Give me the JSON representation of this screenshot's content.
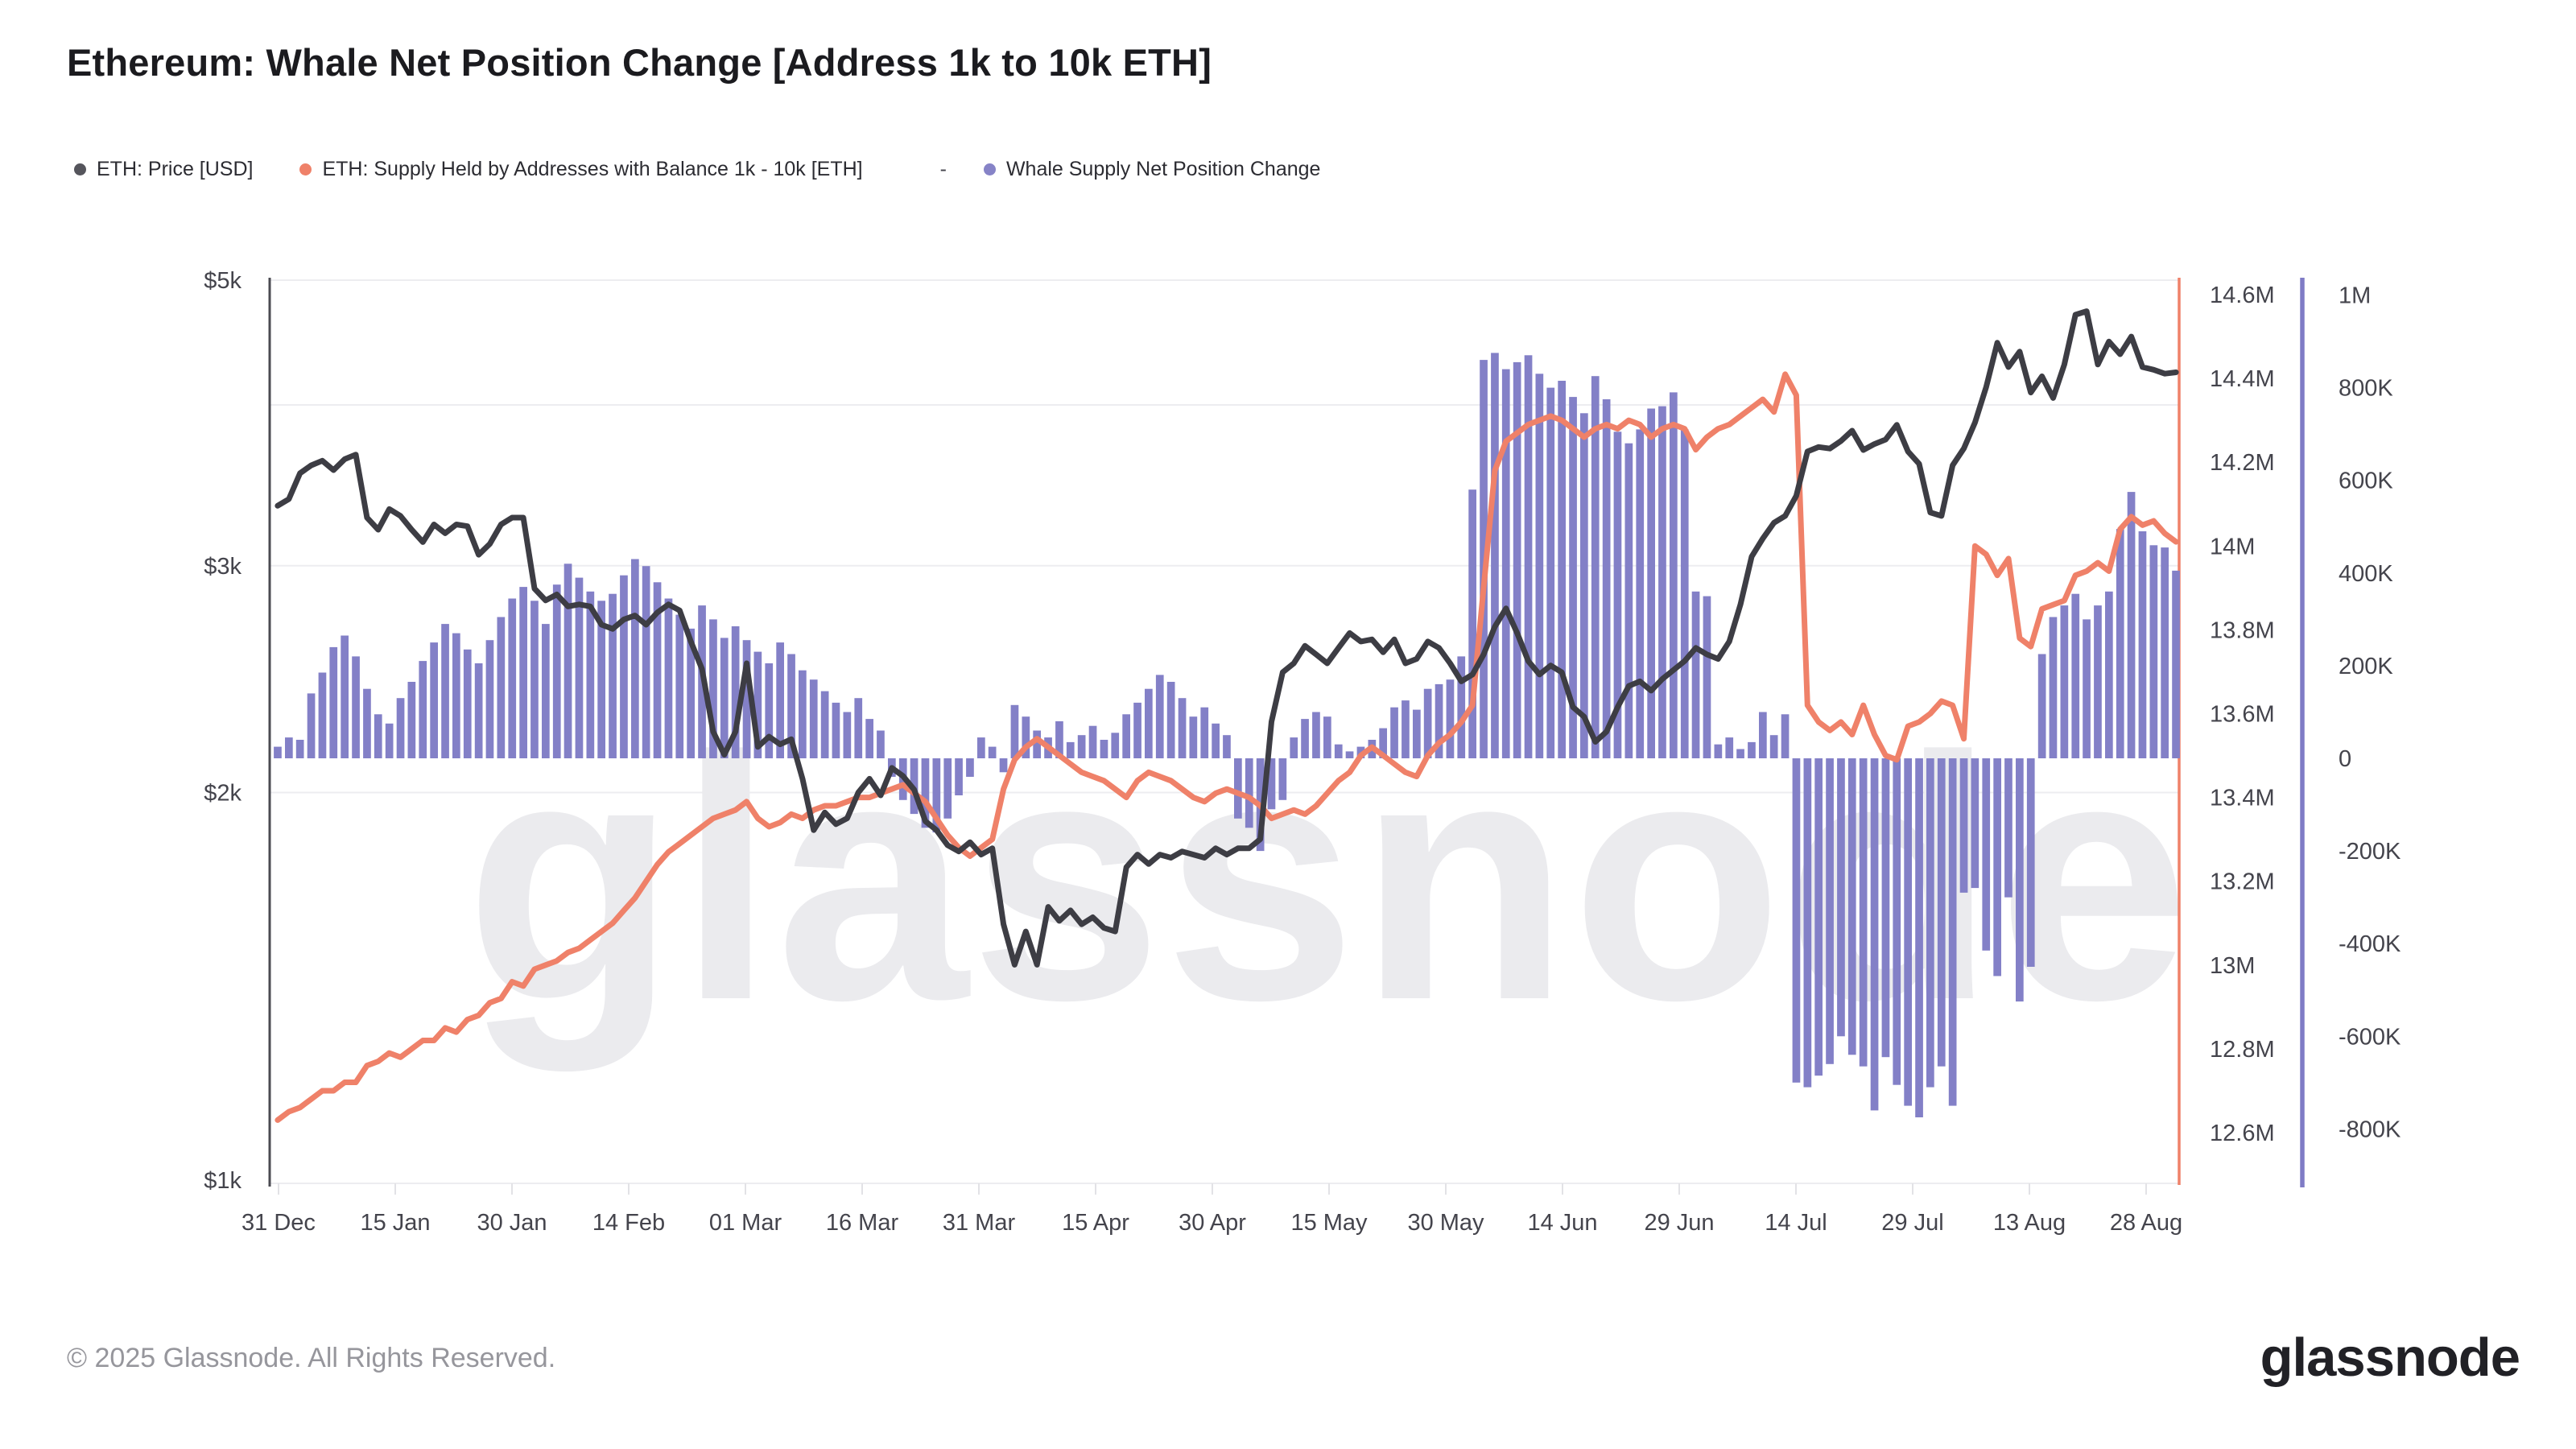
{
  "title": "Ethereum: Whale Net Position Change [Address 1k to 10k ETH]",
  "watermark": "glassnode",
  "legend": {
    "separator": "-",
    "items": [
      {
        "label": "ETH: Price [USD]",
        "color": "#55555c"
      },
      {
        "label": "ETH: Supply Held by Addresses with Balance 1k - 10k [ETH]",
        "color": "#EF8169"
      },
      {
        "label": "Whale Supply Net Position Change",
        "color": "#8683C7"
      }
    ]
  },
  "footer": {
    "copyright": "© 2025 Glassnode. All Rights Reserved.",
    "brand": "glassnode"
  },
  "colors": {
    "background": "#ffffff",
    "grid": "#ededf0",
    "axis_text": "#44444c",
    "left_axis_line": "#4b4b52",
    "price_line": "#3D3D44",
    "supply_line": "#EF8169",
    "bars": "#8380C7",
    "net_axis_line": "#7F7BC5",
    "watermark": "#ebebee"
  },
  "chart_data": {
    "type": "mixed",
    "x_tick_labels": [
      "31 Dec",
      "15 Jan",
      "30 Jan",
      "14 Feb",
      "01 Mar",
      "16 Mar",
      "31 Mar",
      "15 Apr",
      "30 Apr",
      "15 May",
      "30 May",
      "14 Jun",
      "29 Jun",
      "14 Jul",
      "29 Jul",
      "13 Aug",
      "28 Aug"
    ],
    "x_start": "31 Dec",
    "x_end": "01 Sep",
    "axes": {
      "price": {
        "side": "left",
        "scale": "log",
        "min": 1000,
        "max": 5000,
        "unit": "USD",
        "ticks": [
          {
            "label": "$5k",
            "v": 5000
          },
          {
            "label": "$3k",
            "v": 3000
          },
          {
            "label": "$2k",
            "v": 2000
          },
          {
            "label": "$1k",
            "v": 1000
          }
        ],
        "gridlines": [
          5000,
          4000,
          3000,
          2000
        ]
      },
      "supply": {
        "side": "right",
        "scale": "linear",
        "min": 12.6,
        "max": 14.6,
        "unit": "M ETH",
        "ticks": [
          {
            "label": "14.6M",
            "v": 14.6
          },
          {
            "label": "14.4M",
            "v": 14.4
          },
          {
            "label": "14.2M",
            "v": 14.2
          },
          {
            "label": "14M",
            "v": 14.0
          },
          {
            "label": "13.8M",
            "v": 13.8
          },
          {
            "label": "13.6M",
            "v": 13.6
          },
          {
            "label": "13.4M",
            "v": 13.4
          },
          {
            "label": "13.2M",
            "v": 13.2
          },
          {
            "label": "13M",
            "v": 13.0
          },
          {
            "label": "12.8M",
            "v": 12.8
          },
          {
            "label": "12.6M",
            "v": 12.6
          }
        ]
      },
      "net": {
        "side": "right-outer",
        "scale": "linear",
        "min": -800,
        "max": 1000,
        "unit": "K ETH",
        "ticks": [
          {
            "label": "1M",
            "v": 1000
          },
          {
            "label": "800K",
            "v": 800
          },
          {
            "label": "600K",
            "v": 600
          },
          {
            "label": "400K",
            "v": 400
          },
          {
            "label": "200K",
            "v": 200
          },
          {
            "label": "0",
            "v": 0
          },
          {
            "label": "-200K",
            "v": -200
          },
          {
            "label": "-400K",
            "v": -400
          },
          {
            "label": "-600K",
            "v": -600
          },
          {
            "label": "-800K",
            "v": -800
          }
        ]
      }
    },
    "series": [
      {
        "name": "ETH: Price [USD]",
        "type": "line",
        "axis": "price",
        "color": "#3D3D44",
        "values": [
          3340,
          3380,
          3540,
          3590,
          3620,
          3560,
          3630,
          3660,
          3270,
          3200,
          3320,
          3280,
          3200,
          3130,
          3230,
          3180,
          3230,
          3220,
          3060,
          3120,
          3230,
          3270,
          3270,
          2880,
          2820,
          2850,
          2790,
          2800,
          2790,
          2700,
          2680,
          2725,
          2745,
          2700,
          2760,
          2800,
          2770,
          2620,
          2495,
          2230,
          2140,
          2230,
          2520,
          2170,
          2210,
          2180,
          2200,
          2050,
          1870,
          1930,
          1890,
          1910,
          2000,
          2050,
          1990,
          2090,
          2060,
          2010,
          1900,
          1870,
          1820,
          1800,
          1830,
          1790,
          1810,
          1580,
          1470,
          1560,
          1470,
          1630,
          1590,
          1620,
          1580,
          1600,
          1570,
          1560,
          1750,
          1790,
          1760,
          1790,
          1780,
          1800,
          1790,
          1780,
          1810,
          1790,
          1810,
          1810,
          1840,
          2270,
          2480,
          2520,
          2600,
          2560,
          2520,
          2590,
          2660,
          2620,
          2630,
          2570,
          2630,
          2520,
          2540,
          2620,
          2590,
          2520,
          2440,
          2470,
          2560,
          2690,
          2780,
          2660,
          2530,
          2470,
          2510,
          2480,
          2330,
          2290,
          2190,
          2230,
          2330,
          2420,
          2440,
          2400,
          2450,
          2490,
          2530,
          2590,
          2560,
          2540,
          2620,
          2800,
          3050,
          3150,
          3240,
          3280,
          3400,
          3680,
          3710,
          3700,
          3750,
          3820,
          3690,
          3730,
          3760,
          3860,
          3680,
          3600,
          3300,
          3280,
          3590,
          3700,
          3876,
          4130,
          4470,
          4280,
          4400,
          4090,
          4210,
          4050,
          4300,
          4700,
          4730,
          4300,
          4480,
          4380,
          4520,
          4280,
          4260,
          4230,
          4240
        ]
      },
      {
        "name": "ETH: Supply Held by Addresses with Balance 1k - 10k [ETH]",
        "type": "line",
        "axis": "supply",
        "color": "#EF8169",
        "values": [
          12.63,
          12.65,
          12.66,
          12.68,
          12.7,
          12.7,
          12.72,
          12.72,
          12.76,
          12.77,
          12.79,
          12.78,
          12.8,
          12.82,
          12.82,
          12.85,
          12.84,
          12.87,
          12.88,
          12.91,
          12.92,
          12.96,
          12.95,
          12.99,
          13.0,
          13.01,
          13.03,
          13.04,
          13.06,
          13.08,
          13.1,
          13.13,
          13.16,
          13.2,
          13.24,
          13.27,
          13.29,
          13.31,
          13.33,
          13.35,
          13.36,
          13.37,
          13.39,
          13.35,
          13.33,
          13.34,
          13.36,
          13.35,
          13.37,
          13.38,
          13.38,
          13.39,
          13.4,
          13.4,
          13.41,
          13.42,
          13.43,
          13.41,
          13.39,
          13.35,
          13.31,
          13.28,
          13.26,
          13.28,
          13.3,
          13.42,
          13.49,
          13.52,
          13.54,
          13.52,
          13.5,
          13.48,
          13.46,
          13.45,
          13.44,
          13.42,
          13.4,
          13.44,
          13.46,
          13.45,
          13.44,
          13.42,
          13.4,
          13.39,
          13.41,
          13.42,
          13.41,
          13.4,
          13.38,
          13.35,
          13.36,
          13.37,
          13.36,
          13.38,
          13.41,
          13.44,
          13.46,
          13.5,
          13.52,
          13.5,
          13.48,
          13.46,
          13.45,
          13.5,
          13.53,
          13.55,
          13.58,
          13.62,
          13.9,
          14.18,
          14.25,
          14.27,
          14.29,
          14.3,
          14.31,
          14.3,
          14.28,
          14.26,
          14.28,
          14.29,
          14.28,
          14.3,
          14.29,
          14.26,
          14.28,
          14.29,
          14.28,
          14.23,
          14.26,
          14.28,
          14.29,
          14.31,
          14.33,
          14.35,
          14.32,
          14.41,
          14.36,
          13.62,
          13.58,
          13.56,
          13.58,
          13.55,
          13.62,
          13.55,
          13.5,
          13.49,
          13.57,
          13.58,
          13.6,
          13.63,
          13.62,
          13.54,
          14.0,
          13.98,
          13.93,
          13.97,
          13.78,
          13.76,
          13.85,
          13.86,
          13.87,
          13.93,
          13.94,
          13.96,
          13.94,
          14.04,
          14.07,
          14.05,
          14.06,
          14.03,
          14.01
        ]
      },
      {
        "name": "Whale Supply Net Position Change",
        "type": "bar",
        "axis": "net",
        "color": "#8380C7",
        "values": [
          25,
          45,
          40,
          140,
          185,
          240,
          265,
          220,
          150,
          95,
          75,
          130,
          165,
          210,
          250,
          290,
          270,
          235,
          205,
          255,
          305,
          345,
          370,
          340,
          290,
          375,
          420,
          390,
          360,
          340,
          355,
          395,
          430,
          415,
          380,
          345,
          310,
          280,
          330,
          300,
          260,
          285,
          255,
          230,
          205,
          250,
          225,
          190,
          170,
          145,
          120,
          100,
          130,
          85,
          60,
          -40,
          -90,
          -120,
          -150,
          -160,
          -130,
          -80,
          -40,
          45,
          25,
          -30,
          115,
          90,
          60,
          45,
          80,
          35,
          50,
          70,
          40,
          55,
          95,
          120,
          150,
          180,
          165,
          130,
          90,
          110,
          75,
          50,
          -130,
          -150,
          -200,
          -110,
          -90,
          45,
          85,
          100,
          90,
          30,
          15,
          25,
          40,
          65,
          110,
          125,
          105,
          150,
          160,
          170,
          220,
          580,
          860,
          875,
          840,
          855,
          870,
          830,
          800,
          815,
          780,
          745,
          825,
          775,
          705,
          680,
          710,
          755,
          760,
          790,
          710,
          360,
          350,
          30,
          45,
          20,
          35,
          100,
          50,
          95,
          -700,
          -710,
          -685,
          -660,
          -600,
          -640,
          -665,
          -760,
          -645,
          -705,
          -750,
          -775,
          -710,
          -665,
          -750,
          -290,
          -280,
          -415,
          -470,
          -300,
          -525,
          -450,
          225,
          305,
          330,
          355,
          300,
          330,
          360,
          495,
          575,
          490,
          460,
          455,
          405
        ]
      }
    ]
  }
}
